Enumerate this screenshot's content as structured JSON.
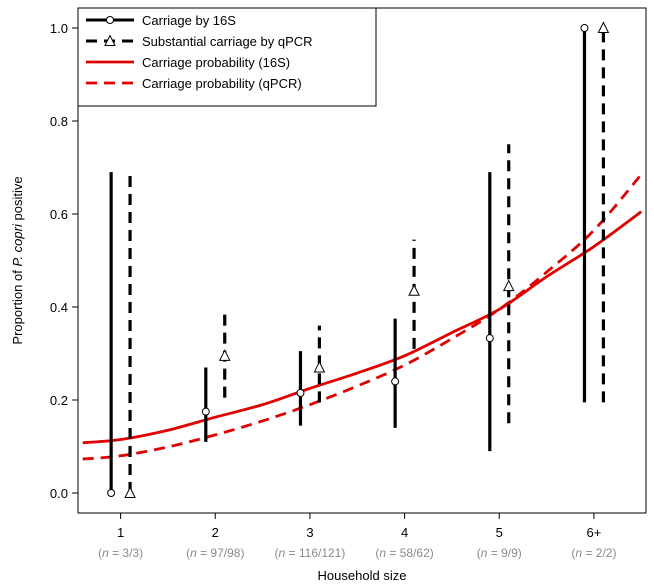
{
  "chart_data": {
    "type": "line",
    "xlabel": "Household size",
    "ylabel_parts": [
      "Proportion of ",
      "P. copri",
      " positive"
    ],
    "ylim": [
      0,
      1
    ],
    "yticks": [
      "0.0",
      "0.2",
      "0.4",
      "0.6",
      "0.8",
      "1.0"
    ],
    "categories": [
      "1",
      "2",
      "3",
      "4",
      "5",
      "6+"
    ],
    "n_labels": [
      "3/3",
      "97/98",
      "116/121",
      "58/62",
      "9/9",
      "2/2"
    ],
    "n_prefix": "n",
    "legend_position": "top-left",
    "legend": [
      {
        "label": "Carriage by 16S",
        "style": "solid",
        "color": "#000000",
        "marker": "circle"
      },
      {
        "label": "Substantial carriage by qPCR",
        "style": "dashed",
        "color": "#000000",
        "marker": "triangle"
      },
      {
        "label": "Carriage probability (16S)",
        "style": "solid",
        "color": "#e00000",
        "marker": "none"
      },
      {
        "label": "Carriage probability (qPCR)",
        "style": "dashed",
        "color": "#e00000",
        "marker": "none"
      }
    ],
    "series": [
      {
        "name": "Carriage by 16S",
        "kind": "interval",
        "style": "solid",
        "marker": "circle",
        "color": "#000000",
        "offset": -0.1,
        "points": [
          {
            "x": 1,
            "y": 0.0,
            "lo": 0.0,
            "hi": 0.69
          },
          {
            "x": 2,
            "y": 0.175,
            "lo": 0.11,
            "hi": 0.27
          },
          {
            "x": 3,
            "y": 0.215,
            "lo": 0.145,
            "hi": 0.305
          },
          {
            "x": 4,
            "y": 0.24,
            "lo": 0.14,
            "hi": 0.375
          },
          {
            "x": 5,
            "y": 0.333,
            "lo": 0.09,
            "hi": 0.69
          },
          {
            "x": 6,
            "y": 1.0,
            "lo": 0.195,
            "hi": 1.0
          }
        ]
      },
      {
        "name": "Substantial carriage by qPCR",
        "kind": "interval",
        "style": "dashed",
        "marker": "triangle",
        "color": "#000000",
        "offset": 0.1,
        "points": [
          {
            "x": 1,
            "y": 0.0,
            "lo": 0.0,
            "hi": 0.69
          },
          {
            "x": 2,
            "y": 0.295,
            "lo": 0.205,
            "hi": 0.39
          },
          {
            "x": 3,
            "y": 0.27,
            "lo": 0.195,
            "hi": 0.36
          },
          {
            "x": 4,
            "y": 0.435,
            "lo": 0.31,
            "hi": 0.545
          },
          {
            "x": 5,
            "y": 0.445,
            "lo": 0.15,
            "hi": 0.75
          },
          {
            "x": 6,
            "y": 1.0,
            "lo": 0.195,
            "hi": 1.0
          }
        ]
      },
      {
        "name": "Carriage probability (16S)",
        "kind": "curve",
        "style": "solid",
        "color": "#e00000",
        "x": [
          0.6,
          1,
          1.5,
          2,
          2.5,
          3,
          3.5,
          4,
          4.5,
          5,
          5.5,
          6,
          6.5
        ],
        "y": [
          0.108,
          0.115,
          0.135,
          0.163,
          0.19,
          0.225,
          0.258,
          0.295,
          0.345,
          0.395,
          0.465,
          0.53,
          0.605
        ]
      },
      {
        "name": "Carriage probability (qPCR)",
        "kind": "curve",
        "style": "dashed",
        "color": "#e00000",
        "x": [
          0.6,
          1,
          1.5,
          2,
          2.5,
          3,
          3.5,
          4,
          4.5,
          5,
          5.5,
          6,
          6.5
        ],
        "y": [
          0.073,
          0.08,
          0.099,
          0.125,
          0.155,
          0.19,
          0.23,
          0.275,
          0.332,
          0.395,
          0.475,
          0.565,
          0.685
        ]
      }
    ]
  }
}
